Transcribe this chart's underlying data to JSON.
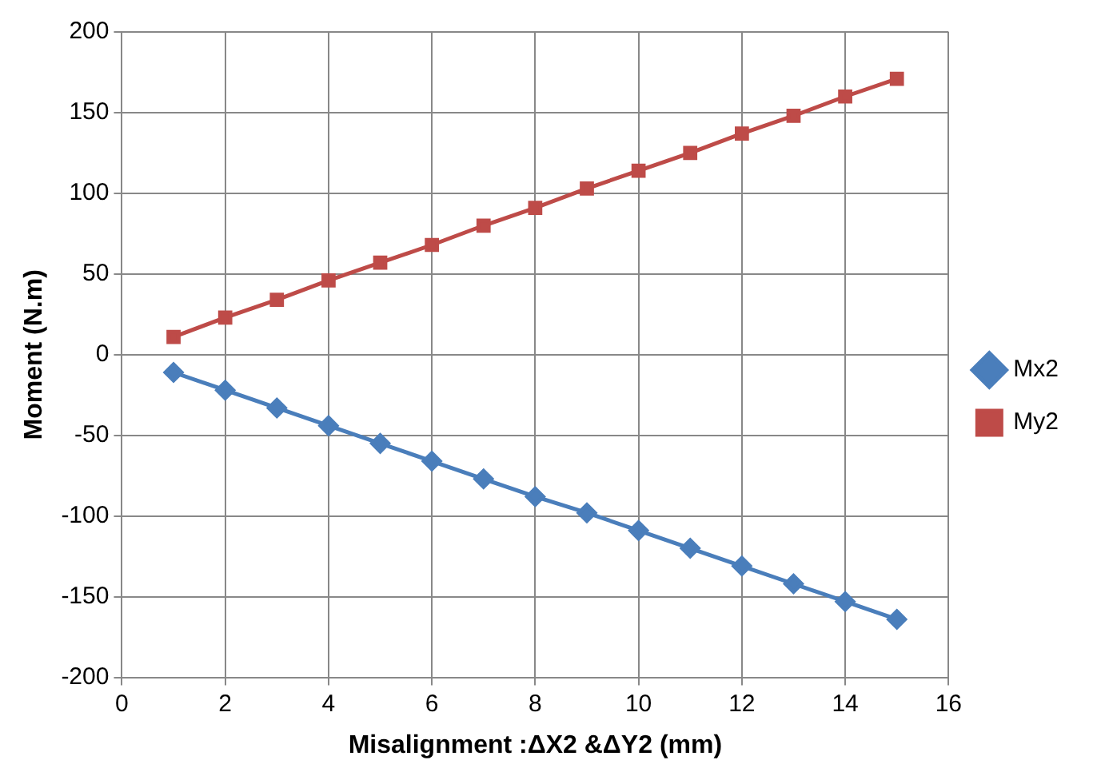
{
  "chart_data": {
    "type": "line",
    "xlabel": "Misalignment :ΔX2 &ΔY2 (mm)",
    "ylabel": "Moment (N.m)",
    "x": [
      1,
      2,
      3,
      4,
      5,
      6,
      7,
      8,
      9,
      10,
      11,
      12,
      13,
      14,
      15
    ],
    "series": [
      {
        "name": "Mx2",
        "color": "#4a7ebb",
        "marker": "diamond",
        "values": [
          -11,
          -22,
          -33,
          -44,
          -55,
          -66,
          -77,
          -88,
          -98,
          -109,
          -120,
          -131,
          -142,
          -153,
          -164
        ]
      },
      {
        "name": "My2",
        "color": "#be4b48",
        "marker": "square",
        "values": [
          11,
          23,
          34,
          46,
          57,
          68,
          80,
          91,
          103,
          114,
          125,
          137,
          148,
          160,
          171
        ]
      }
    ],
    "xlim": [
      0,
      16
    ],
    "xticks": [
      0,
      2,
      4,
      6,
      8,
      10,
      12,
      14,
      16
    ],
    "ylim": [
      -200,
      200
    ],
    "yticks": [
      -200,
      -150,
      -100,
      -50,
      0,
      50,
      100,
      150,
      200
    ],
    "grid": true,
    "legend": "right",
    "line_style": "solid"
  }
}
